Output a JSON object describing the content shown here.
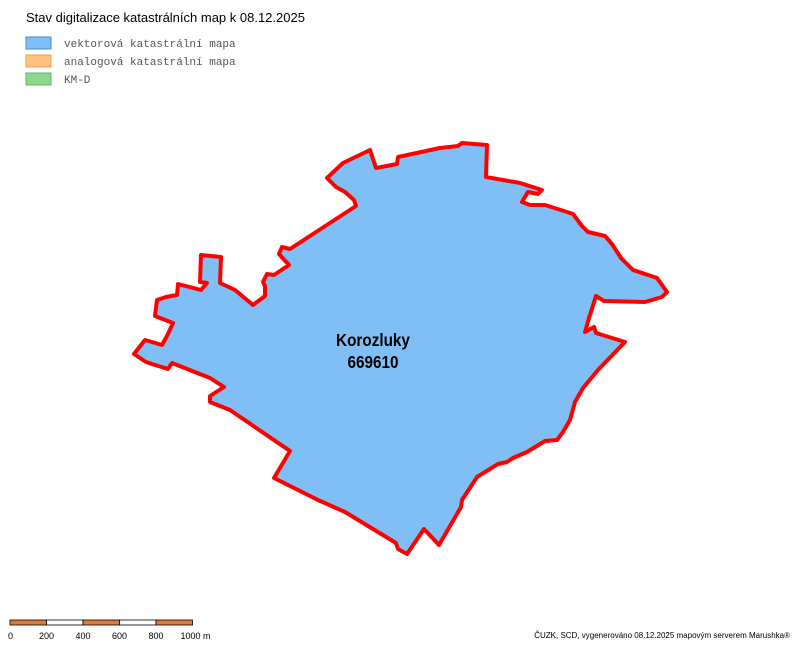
{
  "title": "Stav digitalizace katastrálních map k 08.12.2025",
  "legend": [
    {
      "label": "vektorová katastrální mapa",
      "color": "#80bff5"
    },
    {
      "label": "analogová katastrální mapa",
      "color": "#ffc080"
    },
    {
      "label": "KM-D",
      "color": "#90d690"
    }
  ],
  "area": {
    "name": "Korozluky",
    "code": "669610"
  },
  "scale_bar": {
    "labels": [
      "0",
      "200",
      "400",
      "600",
      "800",
      "1000 m"
    ]
  },
  "credit": "ČUZK, SCD, vygenerováno 08.12.2025 mapovým serverem Marushka®"
}
